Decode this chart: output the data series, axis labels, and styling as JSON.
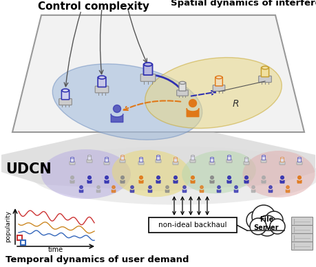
{
  "title_control": "Control complexity",
  "title_spatial": "Spatial dynamics of interference",
  "label_udcn": "UDCN",
  "label_temporal": "Temporal dynamics of user demand",
  "label_backhaul": "non-ideal backhaul",
  "label_file_server": "File\nServer",
  "label_popularity": "popularity",
  "label_time": "time",
  "label_R": "R",
  "purple_color": "#3030b0",
  "orange_color": "#e07818",
  "gray_color": "#888888",
  "figsize": [
    4.6,
    3.88
  ],
  "dpi": 100
}
